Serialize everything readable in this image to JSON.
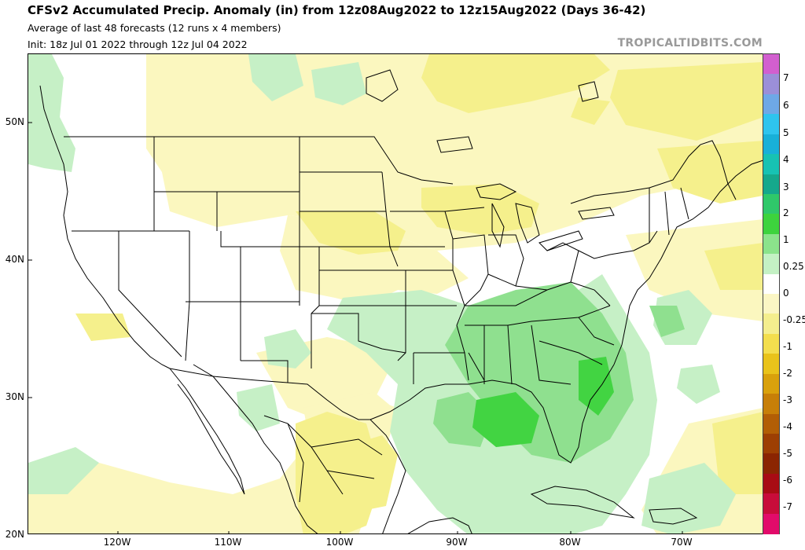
{
  "header": {
    "title": "CFSv2 Accumulated Precip. Anomaly (in) from 12z08Aug2022 to 12z15Aug2022 (Days 36-42)",
    "subtitle": "Average of last 48 forecasts (12 runs x 4 members)",
    "init": "Init: 18z Jul 01 2022 through 12z Jul 04 2022",
    "brand": "TROPICALTIDBITS.COM"
  },
  "map": {
    "lat_labels": [
      "50N",
      "40N",
      "30N",
      "20N"
    ],
    "lon_labels": [
      "120W",
      "110W",
      "100W",
      "90W",
      "80W",
      "70W"
    ],
    "colors": {
      "coast": "#000000",
      "state_border": "#000000",
      "light_yellow": "#fbf7bf",
      "yellow": "#f5f08c",
      "light_green": "#c6f0c6",
      "green": "#8fe08f",
      "dark_green": "#42d442"
    }
  },
  "colorbar": {
    "labels": [
      "7",
      "6",
      "5",
      "4",
      "3",
      "2",
      "1",
      "0.25",
      "0",
      "-0.25",
      "-1",
      "-2",
      "-3",
      "-4",
      "-5",
      "-6",
      "-7"
    ],
    "colors": [
      "#d25fcf",
      "#9b8fd8",
      "#6ea8e6",
      "#2ec4ee",
      "#18b0d8",
      "#17c2b3",
      "#15a88c",
      "#2fc86a",
      "#3dd33d",
      "#8be38b",
      "#c4f1c4",
      "#ffffff",
      "#fbf6c4",
      "#f4ee8e",
      "#f3de4e",
      "#e9c31b",
      "#d9a10c",
      "#c77f08",
      "#b25e05",
      "#9d3f03",
      "#8b2502",
      "#a80c14",
      "#c80c3a",
      "#e20b6a"
    ]
  }
}
